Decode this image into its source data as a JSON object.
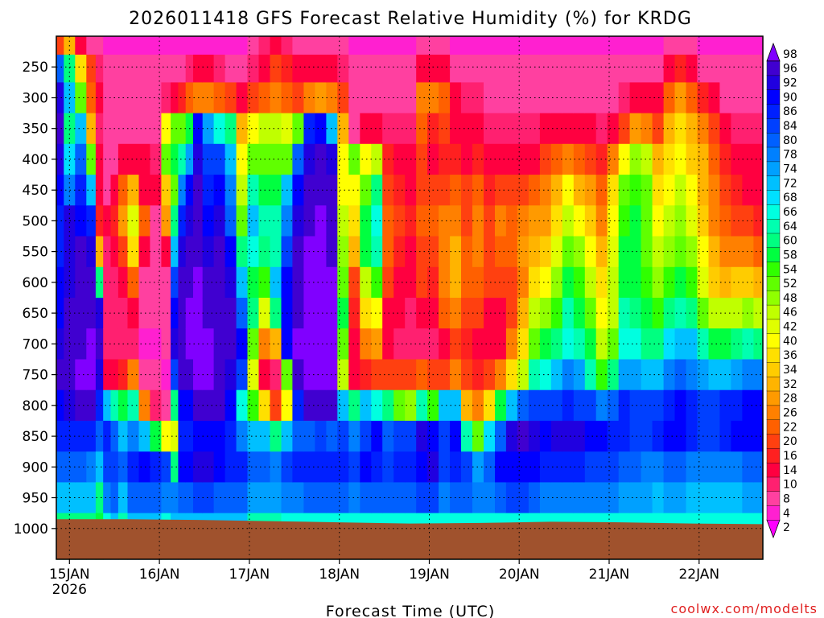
{
  "chart_data": {
    "type": "heatmap",
    "title": "2026011418 GFS Forecast Relative Humidity (%) for KRDG",
    "xlabel": "Forecast Time (UTC)",
    "ylabel": "",
    "credit": "coolwx.com/modelts",
    "x_axis": {
      "ticks": [
        "15JAN",
        "16JAN",
        "17JAN",
        "18JAN",
        "19JAN",
        "20JAN",
        "21JAN",
        "22JAN"
      ],
      "year_label": "2026",
      "range_hours": [
        -3.5,
        185
      ]
    },
    "y_axis": {
      "ticks": [
        250,
        300,
        350,
        400,
        450,
        500,
        550,
        600,
        650,
        700,
        750,
        800,
        850,
        900,
        950,
        1000
      ],
      "range": [
        200,
        1050
      ],
      "unit": "hPa",
      "reversed": true
    },
    "grid": true,
    "colorbar": {
      "position": "right",
      "levels": [
        2,
        4,
        8,
        10,
        14,
        16,
        20,
        22,
        26,
        28,
        32,
        34,
        36,
        40,
        42,
        46,
        48,
        52,
        54,
        58,
        60,
        64,
        66,
        68,
        72,
        74,
        78,
        80,
        84,
        86,
        90,
        92,
        96,
        98
      ],
      "colors": [
        "#ff00ff",
        "#ff20d0",
        "#ff40a0",
        "#ff2070",
        "#ff0040",
        "#ff2020",
        "#ff4010",
        "#ff6000",
        "#ff8000",
        "#ff9a00",
        "#ffb400",
        "#ffcc00",
        "#ffe000",
        "#ffff00",
        "#e0ff00",
        "#c0ff00",
        "#90ff00",
        "#60ff00",
        "#30ff00",
        "#00ff40",
        "#00ff80",
        "#00ffb0",
        "#00ffe0",
        "#00e0ff",
        "#00c0ff",
        "#00a0ff",
        "#0080ff",
        "#0060ff",
        "#0040ff",
        "#0020ff",
        "#0000ff",
        "#2000e0",
        "#4000d0",
        "#8000ff"
      ]
    },
    "terrain_pressure": [
      985,
      985,
      986,
      988,
      990,
      992,
      991,
      989,
      990,
      992,
      993
    ],
    "column_times": [
      -3,
      0,
      3,
      6,
      8,
      10,
      12,
      14,
      17,
      20,
      23,
      26,
      28,
      30,
      32,
      34,
      37,
      40,
      43,
      46,
      49,
      52,
      55,
      58,
      61,
      64,
      67,
      70,
      73,
      76,
      79,
      82,
      85,
      88,
      91,
      94,
      97,
      100,
      103,
      106,
      109,
      112,
      115,
      118,
      121,
      124,
      127,
      130,
      133,
      136,
      139,
      142,
      145,
      148,
      151,
      154,
      157,
      160,
      163,
      166,
      169,
      172,
      175,
      178,
      181,
      184
    ],
    "profile_levels": [
      210,
      250,
      300,
      350,
      400,
      450,
      500,
      550,
      600,
      650,
      700,
      750,
      800,
      850,
      900,
      950,
      1000
    ],
    "rh_profiles": [
      [
        20,
        80,
        92,
        94,
        92,
        88,
        85,
        86,
        88,
        90,
        92,
        94,
        90,
        85,
        80,
        70,
        60
      ],
      [
        30,
        60,
        70,
        60,
        68,
        78,
        92,
        92,
        92,
        94,
        96,
        96,
        92,
        85,
        80,
        70,
        60
      ],
      [
        12,
        35,
        52,
        72,
        80,
        85,
        90,
        94,
        96,
        96,
        96,
        97,
        94,
        86,
        80,
        70,
        60
      ],
      [
        8,
        18,
        22,
        30,
        52,
        72,
        85,
        92,
        94,
        96,
        97,
        97,
        94,
        86,
        78,
        70,
        60
      ],
      [
        6,
        10,
        12,
        10,
        12,
        14,
        16,
        30,
        60,
        92,
        94,
        92,
        86,
        80,
        70,
        60,
        56
      ],
      [
        4,
        6,
        6,
        6,
        6,
        8,
        12,
        10,
        10,
        10,
        10,
        12,
        70,
        86,
        82,
        76,
        66
      ],
      [
        4,
        6,
        6,
        6,
        8,
        12,
        16,
        14,
        10,
        10,
        10,
        14,
        62,
        80,
        84,
        80,
        70
      ],
      [
        4,
        6,
        6,
        8,
        12,
        22,
        28,
        18,
        12,
        10,
        10,
        16,
        56,
        72,
        80,
        70,
        62
      ],
      [
        4,
        6,
        6,
        8,
        12,
        30,
        42,
        36,
        22,
        12,
        10,
        26,
        62,
        76,
        86,
        80,
        70
      ],
      [
        4,
        6,
        6,
        8,
        14,
        14,
        22,
        12,
        8,
        6,
        4,
        8,
        24,
        72,
        88,
        80,
        70
      ],
      [
        4,
        6,
        6,
        8,
        10,
        12,
        8,
        6,
        6,
        6,
        4,
        6,
        10,
        56,
        86,
        80,
        70
      ],
      [
        4,
        6,
        10,
        40,
        52,
        34,
        28,
        12,
        8,
        6,
        6,
        4,
        8,
        38,
        82,
        76,
        66
      ],
      [
        4,
        6,
        12,
        50,
        58,
        52,
        60,
        70,
        82,
        90,
        92,
        84,
        60,
        42,
        60,
        78,
        70
      ],
      [
        4,
        8,
        16,
        52,
        64,
        76,
        86,
        92,
        94,
        96,
        96,
        96,
        88,
        86,
        90,
        80,
        70
      ],
      [
        4,
        10,
        22,
        58,
        74,
        88,
        92,
        94,
        96,
        97,
        97,
        96,
        90,
        86,
        90,
        80,
        70
      ],
      [
        4,
        12,
        26,
        90,
        92,
        94,
        96,
        96,
        97,
        97,
        98,
        97,
        94,
        90,
        92,
        82,
        70
      ],
      [
        4,
        12,
        24,
        74,
        84,
        86,
        90,
        92,
        94,
        96,
        97,
        97,
        94,
        90,
        92,
        82,
        70
      ],
      [
        4,
        10,
        22,
        66,
        84,
        88,
        92,
        94,
        94,
        96,
        96,
        96,
        94,
        90,
        90,
        80,
        70
      ],
      [
        4,
        8,
        18,
        60,
        70,
        76,
        80,
        88,
        92,
        94,
        94,
        92,
        88,
        86,
        86,
        80,
        70
      ],
      [
        4,
        6,
        12,
        30,
        40,
        46,
        50,
        60,
        72,
        80,
        88,
        82,
        66,
        76,
        86,
        80,
        70
      ],
      [
        6,
        10,
        18,
        40,
        50,
        62,
        70,
        66,
        56,
        60,
        52,
        42,
        54,
        72,
        80,
        74,
        64
      ],
      [
        10,
        14,
        22,
        44,
        50,
        56,
        62,
        60,
        54,
        42,
        24,
        14,
        36,
        70,
        80,
        74,
        64
      ],
      [
        12,
        18,
        24,
        46,
        52,
        58,
        62,
        64,
        70,
        60,
        30,
        10,
        20,
        60,
        78,
        74,
        64
      ],
      [
        10,
        16,
        22,
        42,
        50,
        72,
        78,
        84,
        88,
        90,
        88,
        52,
        38,
        72,
        82,
        76,
        66
      ],
      [
        8,
        14,
        20,
        52,
        80,
        88,
        92,
        94,
        96,
        96,
        97,
        95,
        86,
        80,
        86,
        78,
        66
      ],
      [
        8,
        12,
        26,
        86,
        92,
        94,
        96,
        97,
        98,
        98,
        98,
        97,
        94,
        80,
        86,
        80,
        66
      ],
      [
        8,
        12,
        28,
        88,
        94,
        96,
        97,
        97,
        98,
        98,
        98,
        98,
        95,
        82,
        86,
        80,
        66
      ],
      [
        8,
        14,
        26,
        72,
        92,
        94,
        96,
        96,
        97,
        97,
        98,
        97,
        94,
        80,
        86,
        80,
        66
      ],
      [
        6,
        10,
        18,
        30,
        38,
        40,
        46,
        48,
        52,
        56,
        50,
        44,
        70,
        82,
        86,
        80,
        66
      ],
      [
        4,
        6,
        8,
        8,
        52,
        40,
        36,
        30,
        20,
        16,
        12,
        14,
        60,
        76,
        82,
        78,
        66
      ],
      [
        4,
        6,
        8,
        12,
        40,
        52,
        58,
        56,
        46,
        36,
        24,
        16,
        70,
        84,
        88,
        80,
        66
      ],
      [
        4,
        6,
        8,
        12,
        44,
        60,
        66,
        64,
        54,
        40,
        28,
        20,
        66,
        88,
        86,
        80,
        66
      ],
      [
        4,
        6,
        8,
        10,
        16,
        20,
        22,
        22,
        18,
        14,
        12,
        20,
        60,
        80,
        84,
        80,
        66
      ],
      [
        4,
        6,
        8,
        10,
        14,
        16,
        18,
        16,
        14,
        12,
        10,
        20,
        52,
        84,
        86,
        80,
        66
      ],
      [
        4,
        6,
        8,
        10,
        12,
        14,
        16,
        14,
        12,
        10,
        10,
        18,
        48,
        82,
        86,
        80,
        66
      ],
      [
        6,
        12,
        26,
        22,
        18,
        20,
        22,
        20,
        18,
        12,
        10,
        22,
        64,
        92,
        90,
        82,
        66
      ],
      [
        6,
        12,
        24,
        16,
        14,
        18,
        22,
        20,
        16,
        12,
        10,
        18,
        54,
        88,
        92,
        84,
        66
      ],
      [
        6,
        12,
        22,
        18,
        16,
        20,
        24,
        26,
        26,
        22,
        14,
        20,
        72,
        82,
        84,
        78,
        66
      ],
      [
        4,
        8,
        12,
        14,
        16,
        22,
        26,
        30,
        30,
        26,
        20,
        26,
        72,
        90,
        86,
        80,
        66
      ],
      [
        4,
        6,
        10,
        12,
        14,
        18,
        20,
        22,
        22,
        20,
        16,
        20,
        32,
        62,
        82,
        80,
        66
      ],
      [
        4,
        6,
        10,
        12,
        16,
        22,
        26,
        26,
        22,
        18,
        14,
        16,
        24,
        52,
        74,
        76,
        66
      ],
      [
        4,
        6,
        8,
        10,
        12,
        16,
        20,
        20,
        18,
        14,
        14,
        20,
        36,
        68,
        80,
        78,
        66
      ],
      [
        4,
        6,
        8,
        10,
        14,
        20,
        24,
        22,
        18,
        14,
        14,
        24,
        56,
        80,
        88,
        80,
        66
      ],
      [
        4,
        6,
        8,
        10,
        14,
        18,
        22,
        22,
        20,
        20,
        24,
        36,
        72,
        92,
        90,
        82,
        66
      ],
      [
        4,
        6,
        8,
        10,
        14,
        20,
        26,
        28,
        26,
        30,
        36,
        46,
        80,
        94,
        90,
        82,
        66
      ],
      [
        4,
        6,
        8,
        10,
        14,
        22,
        28,
        32,
        36,
        44,
        52,
        62,
        84,
        92,
        88,
        80,
        66
      ],
      [
        4,
        6,
        8,
        12,
        18,
        24,
        28,
        34,
        40,
        48,
        58,
        66,
        82,
        90,
        86,
        78,
        66
      ],
      [
        4,
        6,
        8,
        14,
        22,
        30,
        36,
        42,
        48,
        54,
        60,
        70,
        84,
        92,
        86,
        78,
        66
      ],
      [
        4,
        6,
        8,
        14,
        26,
        38,
        44,
        52,
        58,
        62,
        66,
        76,
        86,
        92,
        86,
        78,
        66
      ],
      [
        4,
        6,
        8,
        12,
        22,
        32,
        40,
        48,
        54,
        58,
        62,
        74,
        84,
        92,
        86,
        78,
        66
      ],
      [
        4,
        6,
        8,
        12,
        20,
        28,
        34,
        40,
        46,
        50,
        56,
        64,
        82,
        90,
        84,
        78,
        66
      ],
      [
        4,
        6,
        8,
        10,
        16,
        22,
        26,
        30,
        36,
        40,
        46,
        54,
        76,
        88,
        82,
        76,
        66
      ],
      [
        4,
        6,
        8,
        12,
        24,
        36,
        40,
        42,
        44,
        46,
        50,
        60,
        80,
        86,
        82,
        76,
        66
      ],
      [
        4,
        6,
        10,
        20,
        40,
        50,
        54,
        56,
        58,
        62,
        66,
        74,
        86,
        86,
        80,
        74,
        66
      ],
      [
        4,
        6,
        12,
        28,
        48,
        54,
        56,
        56,
        58,
        60,
        66,
        74,
        84,
        84,
        80,
        74,
        66
      ],
      [
        4,
        6,
        12,
        26,
        44,
        50,
        52,
        52,
        54,
        56,
        60,
        70,
        82,
        84,
        78,
        74,
        66
      ],
      [
        4,
        8,
        14,
        20,
        30,
        36,
        40,
        44,
        48,
        54,
        60,
        72,
        82,
        86,
        78,
        72,
        66
      ],
      [
        6,
        12,
        22,
        30,
        36,
        40,
        44,
        48,
        54,
        60,
        68,
        78,
        86,
        88,
        80,
        74,
        66
      ],
      [
        8,
        16,
        28,
        36,
        40,
        44,
        48,
        52,
        58,
        64,
        72,
        80,
        88,
        88,
        80,
        74,
        66
      ],
      [
        6,
        12,
        22,
        30,
        34,
        38,
        42,
        48,
        54,
        60,
        70,
        78,
        86,
        86,
        78,
        72,
        66
      ],
      [
        4,
        8,
        16,
        26,
        30,
        32,
        34,
        38,
        42,
        50,
        62,
        74,
        84,
        84,
        76,
        72,
        66
      ],
      [
        4,
        6,
        12,
        18,
        22,
        24,
        26,
        30,
        34,
        44,
        58,
        72,
        84,
        84,
        76,
        72,
        66
      ],
      [
        4,
        6,
        8,
        12,
        16,
        18,
        22,
        26,
        32,
        44,
        58,
        72,
        86,
        86,
        78,
        72,
        66
      ],
      [
        4,
        6,
        8,
        10,
        12,
        16,
        20,
        26,
        34,
        46,
        60,
        74,
        86,
        88,
        78,
        72,
        66
      ],
      [
        4,
        6,
        8,
        10,
        12,
        14,
        18,
        24,
        34,
        48,
        62,
        76,
        88,
        88,
        80,
        74,
        66
      ],
      [
        4,
        6,
        8,
        10,
        12,
        14,
        16,
        22,
        32,
        46,
        60,
        76,
        88,
        88,
        80,
        74,
        66
      ]
    ]
  }
}
